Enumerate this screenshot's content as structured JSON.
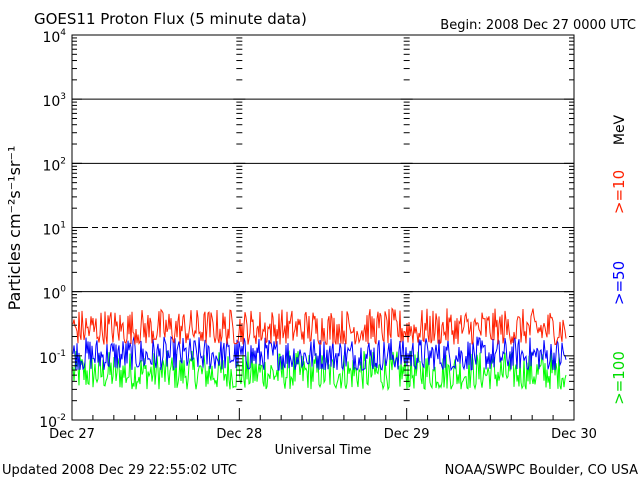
{
  "chart_data": {
    "type": "line",
    "title": "GOES11 Proton Flux (5 minute data)",
    "begin_label": "Begin: 2008 Dec 27 0000 UTC",
    "xlabel": "Universal Time",
    "ylabel": "Particles cm⁻²s⁻¹sr⁻¹",
    "y_scale": "log",
    "ylim": [
      0.01,
      10000
    ],
    "y_ticks": [
      {
        "base": "10",
        "exp": "-2"
      },
      {
        "base": "10",
        "exp": "-1"
      },
      {
        "base": "10",
        "exp": "0"
      },
      {
        "base": "10",
        "exp": "1"
      },
      {
        "base": "10",
        "exp": "2"
      },
      {
        "base": "10",
        "exp": "3"
      },
      {
        "base": "10",
        "exp": "4"
      }
    ],
    "x_ticks": [
      "Dec 27",
      "Dec 28",
      "Dec 29",
      "Dec 30"
    ],
    "xlim": [
      "2008-12-27 00:00",
      "2008-12-30 00:00"
    ],
    "threshold_lines": [
      {
        "value": 1,
        "style": "solid"
      },
      {
        "value": 10,
        "style": "dashed"
      },
      {
        "value": 100,
        "style": "solid"
      },
      {
        "value": 1000,
        "style": "solid"
      }
    ],
    "unit_label": "MeV",
    "series": [
      {
        "name": ">=10",
        "color": "#ff2000",
        "typical_range": [
          0.15,
          0.55
        ]
      },
      {
        "name": ">=50",
        "color": "#0000ff",
        "typical_range": [
          0.06,
          0.2
        ]
      },
      {
        "name": ">=100",
        "color": "#00ff00",
        "typical_range": [
          0.03,
          0.12
        ]
      }
    ]
  },
  "footer": {
    "updated": "Updated 2008 Dec 29 22:55:02 UTC",
    "source": "NOAA/SWPC Boulder, CO USA"
  }
}
